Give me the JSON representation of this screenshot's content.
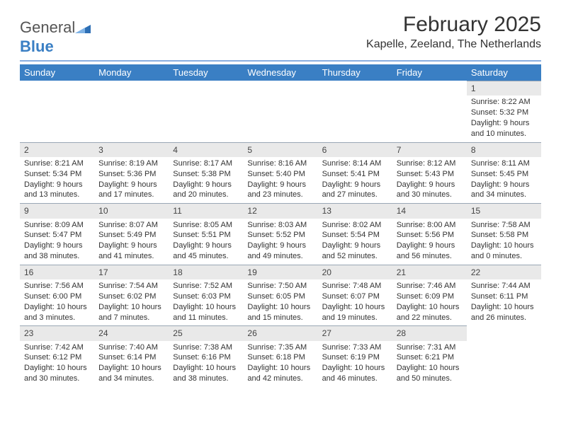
{
  "brand": {
    "general": "General",
    "blue": "Blue"
  },
  "title": {
    "month": "February 2025",
    "location": "Kapelle, Zeeland, The Netherlands"
  },
  "colors": {
    "header_bg": "#3a7fc4",
    "header_text": "#ffffff",
    "daynum_bg": "#e9e9e9",
    "daynum_border": "#9aa7b5",
    "hr": "#88aee0",
    "body_text": "#333333"
  },
  "weekdays": [
    "Sunday",
    "Monday",
    "Tuesday",
    "Wednesday",
    "Thursday",
    "Friday",
    "Saturday"
  ],
  "weeks": [
    [
      null,
      null,
      null,
      null,
      null,
      null,
      {
        "n": "1",
        "sunrise": "Sunrise: 8:22 AM",
        "sunset": "Sunset: 5:32 PM",
        "dl1": "Daylight: 9 hours",
        "dl2": "and 10 minutes."
      }
    ],
    [
      {
        "n": "2",
        "sunrise": "Sunrise: 8:21 AM",
        "sunset": "Sunset: 5:34 PM",
        "dl1": "Daylight: 9 hours",
        "dl2": "and 13 minutes."
      },
      {
        "n": "3",
        "sunrise": "Sunrise: 8:19 AM",
        "sunset": "Sunset: 5:36 PM",
        "dl1": "Daylight: 9 hours",
        "dl2": "and 17 minutes."
      },
      {
        "n": "4",
        "sunrise": "Sunrise: 8:17 AM",
        "sunset": "Sunset: 5:38 PM",
        "dl1": "Daylight: 9 hours",
        "dl2": "and 20 minutes."
      },
      {
        "n": "5",
        "sunrise": "Sunrise: 8:16 AM",
        "sunset": "Sunset: 5:40 PM",
        "dl1": "Daylight: 9 hours",
        "dl2": "and 23 minutes."
      },
      {
        "n": "6",
        "sunrise": "Sunrise: 8:14 AM",
        "sunset": "Sunset: 5:41 PM",
        "dl1": "Daylight: 9 hours",
        "dl2": "and 27 minutes."
      },
      {
        "n": "7",
        "sunrise": "Sunrise: 8:12 AM",
        "sunset": "Sunset: 5:43 PM",
        "dl1": "Daylight: 9 hours",
        "dl2": "and 30 minutes."
      },
      {
        "n": "8",
        "sunrise": "Sunrise: 8:11 AM",
        "sunset": "Sunset: 5:45 PM",
        "dl1": "Daylight: 9 hours",
        "dl2": "and 34 minutes."
      }
    ],
    [
      {
        "n": "9",
        "sunrise": "Sunrise: 8:09 AM",
        "sunset": "Sunset: 5:47 PM",
        "dl1": "Daylight: 9 hours",
        "dl2": "and 38 minutes."
      },
      {
        "n": "10",
        "sunrise": "Sunrise: 8:07 AM",
        "sunset": "Sunset: 5:49 PM",
        "dl1": "Daylight: 9 hours",
        "dl2": "and 41 minutes."
      },
      {
        "n": "11",
        "sunrise": "Sunrise: 8:05 AM",
        "sunset": "Sunset: 5:51 PM",
        "dl1": "Daylight: 9 hours",
        "dl2": "and 45 minutes."
      },
      {
        "n": "12",
        "sunrise": "Sunrise: 8:03 AM",
        "sunset": "Sunset: 5:52 PM",
        "dl1": "Daylight: 9 hours",
        "dl2": "and 49 minutes."
      },
      {
        "n": "13",
        "sunrise": "Sunrise: 8:02 AM",
        "sunset": "Sunset: 5:54 PM",
        "dl1": "Daylight: 9 hours",
        "dl2": "and 52 minutes."
      },
      {
        "n": "14",
        "sunrise": "Sunrise: 8:00 AM",
        "sunset": "Sunset: 5:56 PM",
        "dl1": "Daylight: 9 hours",
        "dl2": "and 56 minutes."
      },
      {
        "n": "15",
        "sunrise": "Sunrise: 7:58 AM",
        "sunset": "Sunset: 5:58 PM",
        "dl1": "Daylight: 10 hours",
        "dl2": "and 0 minutes."
      }
    ],
    [
      {
        "n": "16",
        "sunrise": "Sunrise: 7:56 AM",
        "sunset": "Sunset: 6:00 PM",
        "dl1": "Daylight: 10 hours",
        "dl2": "and 3 minutes."
      },
      {
        "n": "17",
        "sunrise": "Sunrise: 7:54 AM",
        "sunset": "Sunset: 6:02 PM",
        "dl1": "Daylight: 10 hours",
        "dl2": "and 7 minutes."
      },
      {
        "n": "18",
        "sunrise": "Sunrise: 7:52 AM",
        "sunset": "Sunset: 6:03 PM",
        "dl1": "Daylight: 10 hours",
        "dl2": "and 11 minutes."
      },
      {
        "n": "19",
        "sunrise": "Sunrise: 7:50 AM",
        "sunset": "Sunset: 6:05 PM",
        "dl1": "Daylight: 10 hours",
        "dl2": "and 15 minutes."
      },
      {
        "n": "20",
        "sunrise": "Sunrise: 7:48 AM",
        "sunset": "Sunset: 6:07 PM",
        "dl1": "Daylight: 10 hours",
        "dl2": "and 19 minutes."
      },
      {
        "n": "21",
        "sunrise": "Sunrise: 7:46 AM",
        "sunset": "Sunset: 6:09 PM",
        "dl1": "Daylight: 10 hours",
        "dl2": "and 22 minutes."
      },
      {
        "n": "22",
        "sunrise": "Sunrise: 7:44 AM",
        "sunset": "Sunset: 6:11 PM",
        "dl1": "Daylight: 10 hours",
        "dl2": "and 26 minutes."
      }
    ],
    [
      {
        "n": "23",
        "sunrise": "Sunrise: 7:42 AM",
        "sunset": "Sunset: 6:12 PM",
        "dl1": "Daylight: 10 hours",
        "dl2": "and 30 minutes."
      },
      {
        "n": "24",
        "sunrise": "Sunrise: 7:40 AM",
        "sunset": "Sunset: 6:14 PM",
        "dl1": "Daylight: 10 hours",
        "dl2": "and 34 minutes."
      },
      {
        "n": "25",
        "sunrise": "Sunrise: 7:38 AM",
        "sunset": "Sunset: 6:16 PM",
        "dl1": "Daylight: 10 hours",
        "dl2": "and 38 minutes."
      },
      {
        "n": "26",
        "sunrise": "Sunrise: 7:35 AM",
        "sunset": "Sunset: 6:18 PM",
        "dl1": "Daylight: 10 hours",
        "dl2": "and 42 minutes."
      },
      {
        "n": "27",
        "sunrise": "Sunrise: 7:33 AM",
        "sunset": "Sunset: 6:19 PM",
        "dl1": "Daylight: 10 hours",
        "dl2": "and 46 minutes."
      },
      {
        "n": "28",
        "sunrise": "Sunrise: 7:31 AM",
        "sunset": "Sunset: 6:21 PM",
        "dl1": "Daylight: 10 hours",
        "dl2": "and 50 minutes."
      },
      null
    ]
  ]
}
